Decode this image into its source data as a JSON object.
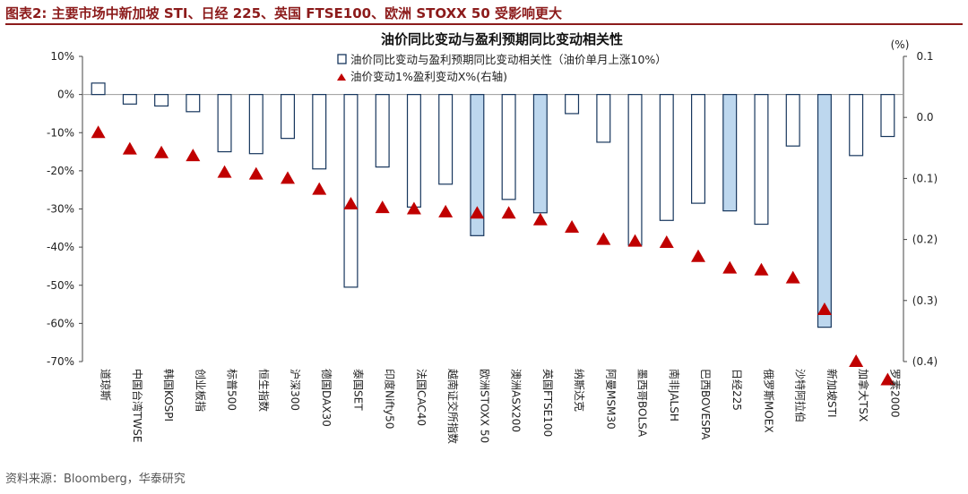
{
  "figure_label": "图表2:  主要市场中新加坡 STI、日经 225、英国 FTSE100、欧洲 STOXX 50 受影响更大",
  "source": "资料来源：Bloomberg，华泰研究",
  "colors": {
    "accent": "#8c1b1b",
    "bar_edge": "#17365d",
    "bar_fill": "#bdd7ee",
    "triangle": "#c00000"
  },
  "chart_data": {
    "type": "bar",
    "title": "油价同比变动与盈利预期同比变动相关性",
    "left_axis": {
      "ylim": [
        -70,
        10
      ],
      "ticks": [
        10,
        0,
        -10,
        -20,
        -30,
        -40,
        -50,
        -60,
        -70
      ],
      "tick_labels": [
        "10%",
        "0%",
        "-10%",
        "-20%",
        "-30%",
        "-40%",
        "-50%",
        "-60%",
        "-70%"
      ]
    },
    "right_axis": {
      "unit_label": "(%)",
      "ylim": [
        -0.4,
        0.1
      ],
      "ticks": [
        0.1,
        0.0,
        -0.1,
        -0.2,
        -0.3,
        -0.4
      ],
      "tick_labels": [
        "0.1",
        "0.0",
        "(0.1)",
        "(0.2)",
        "(0.3)",
        "(0.4)"
      ]
    },
    "legend": {
      "bar_label": "油价同比变动与盈利预期同比变动相关性（油价单月上涨10%）",
      "marker_label": "油价变动1%盈利变动X%(右轴)",
      "position": "top-center"
    },
    "categories": [
      "道琼斯",
      "中国台湾TWSE",
      "韩国KOSPI",
      "创业板指",
      "标普500",
      "恒生指数",
      "沪深300",
      "德国DAX30",
      "泰国SET",
      "印度Nifty50",
      "法国CAC40",
      "越南证交所指数",
      "欧洲STOXX 50",
      "澳洲ASX200",
      "英国FTSE100",
      "纳斯达克",
      "阿曼MSM30",
      "墨西哥BOLSA",
      "南非JALSH",
      "巴西BOVESPA",
      "日经225",
      "俄罗斯MOEX",
      "沙特阿拉伯",
      "新加坡STI",
      "加拿大TSX",
      "罗素2000"
    ],
    "highlighted": [
      false,
      false,
      false,
      false,
      false,
      false,
      false,
      false,
      false,
      false,
      false,
      false,
      true,
      false,
      true,
      false,
      false,
      false,
      false,
      false,
      true,
      false,
      false,
      true,
      false,
      false
    ],
    "series": [
      {
        "name": "油价同比变动与盈利预期同比变动相关性（油价单月上涨10%）",
        "axis": "left",
        "type": "bar",
        "values": [
          3.0,
          -2.5,
          -3.0,
          -4.5,
          -15.0,
          -15.5,
          -11.5,
          -19.5,
          -50.5,
          -19.0,
          -29.5,
          -23.5,
          -37.0,
          -27.5,
          -31.0,
          -5.0,
          -12.5,
          -39.5,
          -33.0,
          -28.5,
          -30.5,
          -34.0,
          -13.5,
          -61.0,
          -16.0,
          -11.0
        ]
      },
      {
        "name": "油价变动1%盈利变动X%(右轴)",
        "axis": "right",
        "type": "scatter",
        "values": [
          -0.025,
          -0.052,
          -0.058,
          -0.063,
          -0.09,
          -0.093,
          -0.1,
          -0.118,
          -0.142,
          -0.148,
          -0.15,
          -0.155,
          -0.157,
          -0.157,
          -0.168,
          -0.18,
          -0.2,
          -0.203,
          -0.205,
          -0.228,
          -0.247,
          -0.25,
          -0.263,
          -0.315,
          -0.4,
          -0.43
        ]
      }
    ]
  }
}
